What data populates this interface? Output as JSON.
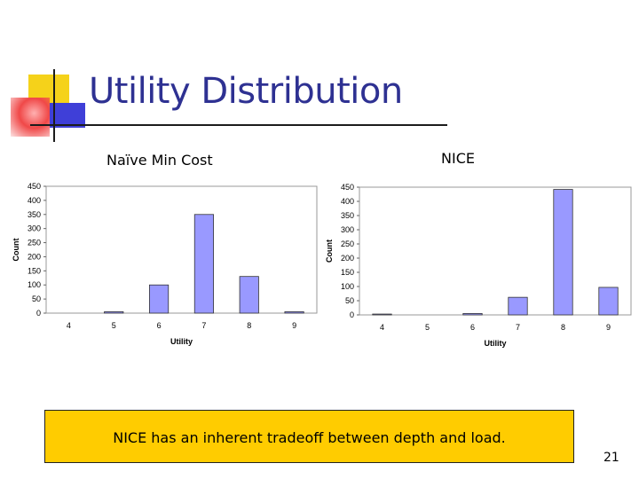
{
  "slide": {
    "title": "Utility Distribution",
    "note": "NICE has an inherent tradeoff between depth and load.",
    "page_number": "21"
  },
  "colors": {
    "title": "#2e3192",
    "bar_fill": "#9999ff",
    "bar_stroke": "#333333",
    "note_background": "#ffcc00"
  },
  "chart_data": [
    {
      "type": "bar",
      "title": "Naïve Min Cost",
      "xlabel": "Utility",
      "ylabel": "Count",
      "categories": [
        "4",
        "5",
        "6",
        "7",
        "8",
        "9"
      ],
      "values": [
        0,
        5,
        100,
        350,
        130,
        5
      ],
      "ylim": [
        0,
        450
      ],
      "yticks": [
        0,
        50,
        100,
        150,
        200,
        250,
        300,
        350,
        400,
        450
      ],
      "grid": false,
      "legend": "none"
    },
    {
      "type": "bar",
      "title": "NICE",
      "xlabel": "Utility",
      "ylabel": "Count",
      "categories": [
        "4",
        "5",
        "6",
        "7",
        "8",
        "9"
      ],
      "values": [
        3,
        0,
        5,
        62,
        442,
        97
      ],
      "ylim": [
        0,
        450
      ],
      "yticks": [
        0,
        50,
        100,
        150,
        200,
        250,
        300,
        350,
        400,
        450
      ],
      "grid": false,
      "legend": "none"
    }
  ]
}
